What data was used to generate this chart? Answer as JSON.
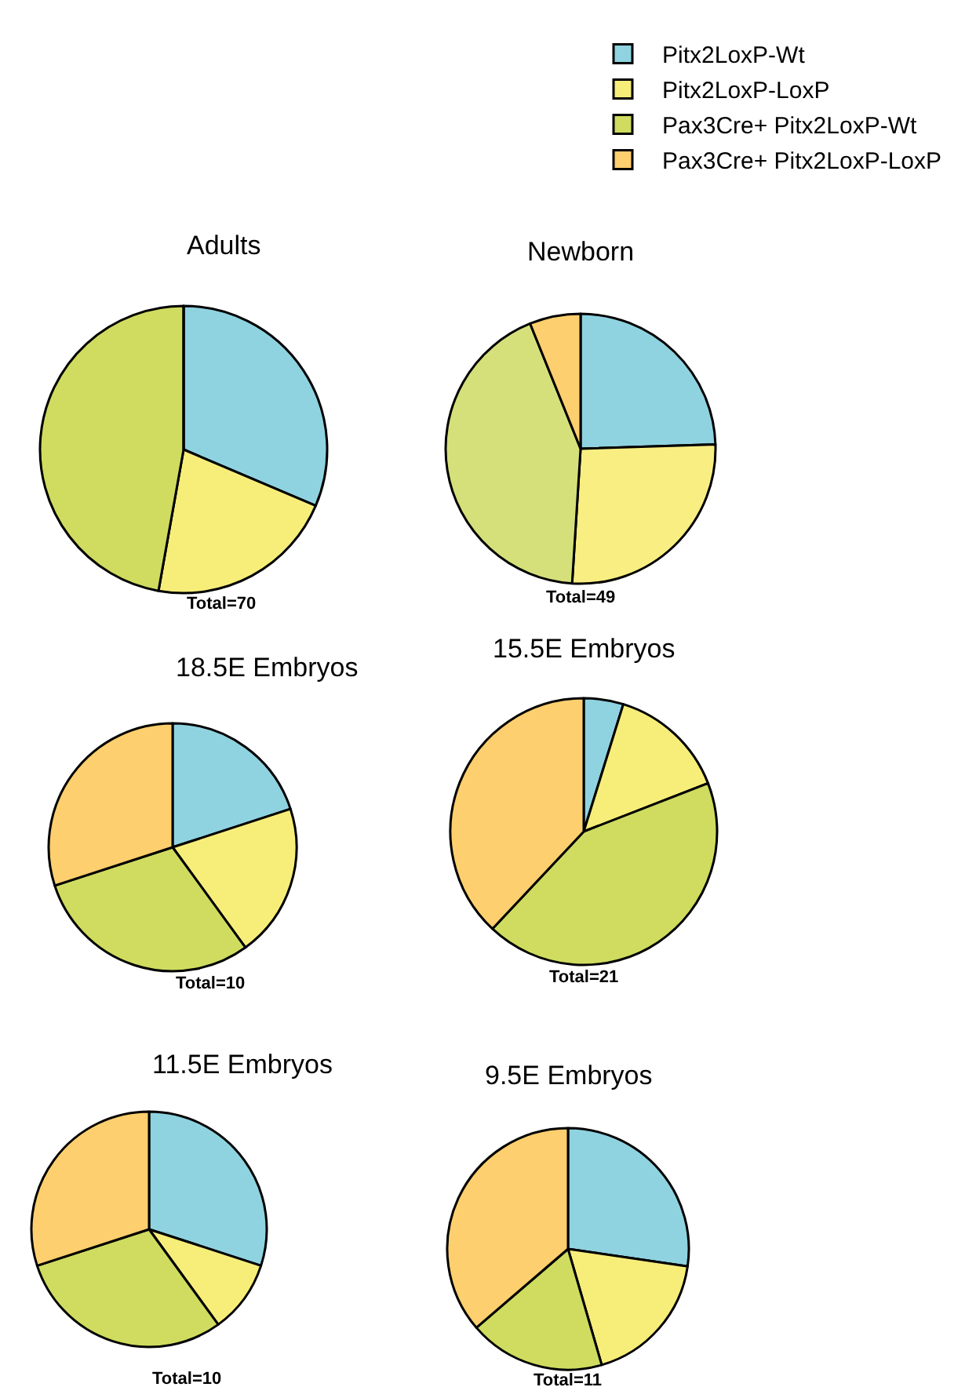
{
  "chart_data": [
    {
      "type": "pie",
      "title": "Adults",
      "categories": [
        "Pitx2LoxP-Wt",
        "Pitx2LoxP-LoxP",
        "Pax3Cre+ Pitx2LoxP-Wt",
        "Pax3Cre+ Pitx2LoxP-LoxP"
      ],
      "values": [
        31.4,
        21.4,
        47.2,
        0
      ],
      "colors": [
        "#8fd3e0",
        "#f7ee7a",
        "#cfdc5f",
        "#fdcf6e"
      ],
      "annotations": [
        "Total=70"
      ],
      "legend": "top right"
    },
    {
      "type": "pie",
      "title": "Newborn",
      "categories": [
        null,
        null,
        null,
        null
      ],
      "values": [
        24.5,
        26.5,
        42.9,
        6.1
      ],
      "colors": [
        "#8fd3e0",
        "#f9ee82",
        "#d6e07a",
        "#fdcf6e"
      ],
      "annotations": [
        "Total=49"
      ]
    },
    {
      "type": "pie",
      "title": "18.5E Embryos",
      "categories": [
        null,
        null,
        null,
        null
      ],
      "values": [
        20,
        20,
        30,
        30
      ],
      "colors": [
        "#8fd3e0",
        "#f7ee7a",
        "#cfdc5f",
        "#fdcf6e"
      ],
      "annotations": [
        "Total=10"
      ]
    },
    {
      "type": "pie",
      "title": "15.5E Embryos",
      "categories": [
        null,
        null,
        null,
        null
      ],
      "values": [
        4.8,
        14.3,
        42.9,
        38.0
      ],
      "colors": [
        "#8fd3e0",
        "#f7ee7a",
        "#cfdc5f",
        "#fdcf6e"
      ],
      "annotations": [
        "Total=21"
      ]
    },
    {
      "type": "pie",
      "title": "11.5E Embryos",
      "categories": [
        null,
        null,
        null,
        null
      ],
      "values": [
        30,
        10,
        30,
        30
      ],
      "colors": [
        "#8fd3e0",
        "#f7ee7a",
        "#cfdc5f",
        "#fdcf6e"
      ],
      "annotations": [
        "Total=10"
      ]
    },
    {
      "type": "pie",
      "title": "9.5E Embryos",
      "categories": [
        null,
        null,
        null,
        null
      ],
      "values": [
        27.3,
        18.2,
        18.2,
        36.3
      ],
      "colors": [
        "#8fd3e0",
        "#f7ee7a",
        "#cfdc5f",
        "#fdcf6e"
      ],
      "annotations": [
        "Total=11"
      ]
    }
  ]
}
